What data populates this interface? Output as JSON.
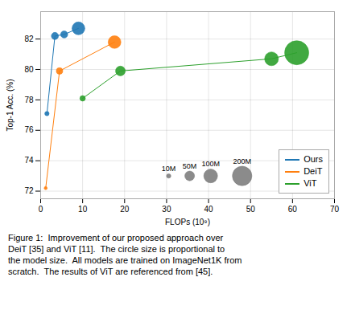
{
  "chart_data": {
    "type": "bubble",
    "xlabel": "FLOPs (10⁹)",
    "ylabel": "Top-1 Acc. (%)",
    "xlim": [
      0,
      70
    ],
    "ylim": [
      71.5,
      83.8
    ],
    "xticks": [
      0,
      10,
      20,
      30,
      40,
      50,
      60,
      70
    ],
    "yticks": [
      72,
      74,
      76,
      78,
      80,
      82
    ],
    "grid": true,
    "legend": "lower right",
    "series": [
      {
        "name": "Ours",
        "color": "#1f77b4",
        "x": [
          1.5,
          3.4,
          5.6,
          9.0
        ],
        "values": [
          77.1,
          82.2,
          82.3,
          82.7
        ],
        "sizes": [
          10,
          27,
          27,
          87
        ]
      },
      {
        "name": "DeiT",
        "color": "#ff7f0e",
        "x": [
          1.2,
          4.5,
          17.6
        ],
        "values": [
          72.2,
          79.9,
          81.8
        ],
        "sizes": [
          5,
          22,
          86
        ]
      },
      {
        "name": "ViT",
        "color": "#2ca02c",
        "x": [
          10.0,
          19.0,
          55.0,
          61.0
        ],
        "values": [
          78.1,
          79.9,
          80.7,
          81.1
        ],
        "sizes": [
          16,
          50,
          100,
          307
        ]
      }
    ],
    "annotations": [
      {
        "text": "10M",
        "x": 30.5,
        "y": 73.0,
        "size": 10,
        "color": "#777777"
      },
      {
        "text": "50M",
        "x": 35.5,
        "y": 73.0,
        "size": 50,
        "color": "#777777"
      },
      {
        "text": "100M",
        "x": 40.5,
        "y": 73.0,
        "size": 100,
        "color": "#777777"
      },
      {
        "text": "200M",
        "x": 48.0,
        "y": 73.0,
        "size": 200,
        "color": "#777777"
      }
    ],
    "caption": [
      "Figure 1:  Improvement of our proposed approach over",
      "DeiT [35] and ViT [11].  The circle size is proportional to",
      "the model size.  All models are trained on ImageNet1K from",
      "scratch.  The results of ViT are referenced from [45]."
    ]
  }
}
